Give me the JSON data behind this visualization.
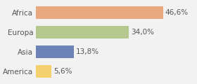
{
  "categories": [
    "Africa",
    "Europa",
    "Asia",
    "America"
  ],
  "values": [
    46.6,
    34.0,
    13.8,
    5.6
  ],
  "labels": [
    "46,6%",
    "34,0%",
    "13,8%",
    "5,6%"
  ],
  "bar_colors": [
    "#e8a97e",
    "#b5c98e",
    "#6d83b8",
    "#f5d06e"
  ],
  "background_color": "#f2f2f2",
  "xlim": [
    0,
    58
  ],
  "label_fontsize": 7.5,
  "category_fontsize": 7.5
}
